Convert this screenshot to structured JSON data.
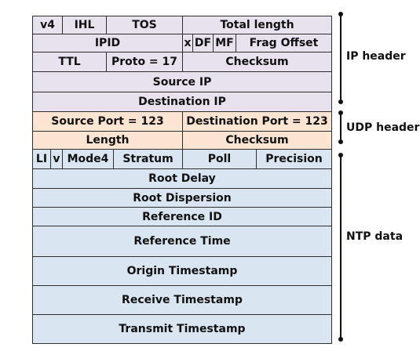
{
  "colors": {
    "ip_bg": "#e7e2ee",
    "udp_bg": "#fbe4d1",
    "ntp_bg": "#d9e5f0",
    "border": "#2e2e2e"
  },
  "ip": {
    "v4": "v4",
    "ihl": "IHL",
    "tos": "TOS",
    "total_length": "Total length",
    "ipid": "IPID",
    "x": "x",
    "df": "DF",
    "mf": "MF",
    "frag_offset": "Frag Offset",
    "ttl": "TTL",
    "proto": "Proto = 17",
    "checksum": "Checksum",
    "source_ip": "Source IP",
    "destination_ip": "Destination IP"
  },
  "udp": {
    "source_port": "Source Port = 123",
    "destination_port": "Destination Port = 123",
    "length": "Length",
    "checksum": "Checksum"
  },
  "ntp": {
    "li": "LI",
    "v": "v",
    "mode": "Mode4",
    "stratum": "Stratum",
    "poll": "Poll",
    "precision": "Precision",
    "root_delay": "Root Delay",
    "root_dispersion": "Root Dispersion",
    "reference_id": "Reference ID",
    "reference_time": "Reference Time",
    "origin_timestamp": "Origin Timestamp",
    "receive_timestamp": "Receive Timestamp",
    "transmit_timestamp": "Transmit Timestamp"
  },
  "labels": {
    "ip_header": "IP header",
    "udp_header": "UDP header",
    "ntp_data": "NTP data"
  }
}
